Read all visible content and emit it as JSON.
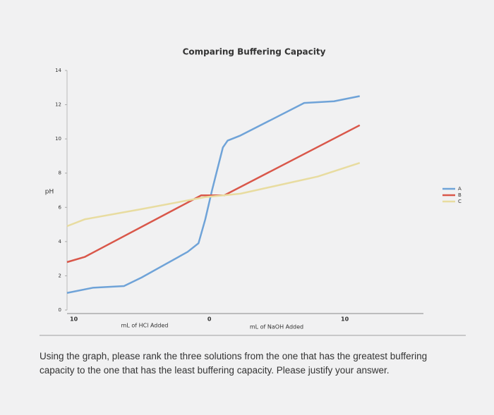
{
  "chart_data": {
    "type": "line",
    "title": "Comparing Buffering Capacity",
    "y_label": "pH",
    "x_labels": [
      "mL of HCl Added",
      "mL of NaOH Added"
    ],
    "xlim": [
      -10.5,
      15.8
    ],
    "xticks": [
      {
        "value": -10,
        "label": "10"
      },
      0,
      10
    ],
    "ylim": [
      0,
      14
    ],
    "yticks": [
      0,
      2,
      4,
      6,
      8,
      10,
      12,
      14
    ],
    "series": [
      {
        "name": "A",
        "color": "#6fa3d8",
        "x": [
          -10.5,
          -8.6,
          -6.3,
          -5,
          -1.6,
          -0.8,
          -0.3,
          0.2,
          1,
          1.35,
          2.3,
          7,
          9.2,
          11.1
        ],
        "values": [
          1.0,
          1.3,
          1.4,
          1.9,
          3.4,
          3.9,
          5.3,
          7.0,
          9.5,
          9.9,
          10.2,
          12.1,
          12.2,
          12.5
        ]
      },
      {
        "name": "B",
        "color": "#d9574a",
        "x": [
          -10.5,
          -9.2,
          -0.6,
          1.1,
          11.1
        ],
        "values": [
          2.8,
          3.1,
          6.7,
          6.7,
          10.8
        ]
      },
      {
        "name": "C",
        "color": "#e8dca0",
        "x": [
          -10.5,
          -9.2,
          -5,
          -0.3,
          2.3,
          8,
          11.1
        ],
        "values": [
          4.9,
          5.3,
          5.9,
          6.6,
          6.8,
          7.8,
          8.6
        ]
      }
    ]
  },
  "question": "Using the graph, please rank the three solutions from the one that has the greatest buffering capacity to the one that has the least buffering capacity. Please justify your answer."
}
